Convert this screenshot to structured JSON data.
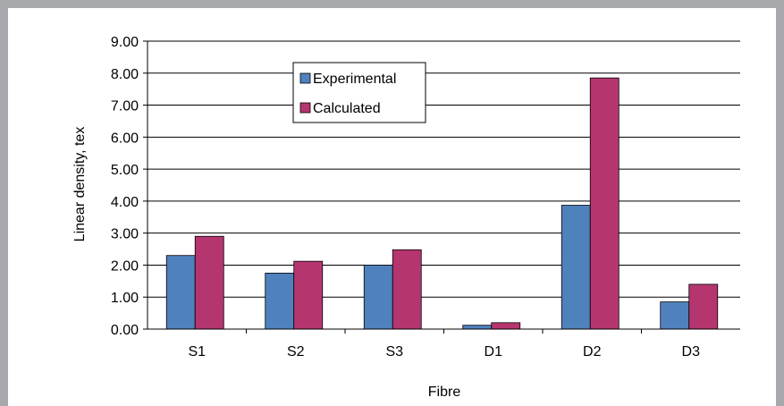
{
  "chart_data": {
    "type": "bar",
    "categories": [
      "S1",
      "S2",
      "S3",
      "D1",
      "D2",
      "D3"
    ],
    "series": [
      {
        "name": "Experimental",
        "color": "#4f81bd",
        "values": [
          2.3,
          1.75,
          2.0,
          0.12,
          3.87,
          0.85
        ]
      },
      {
        "name": "Calculated",
        "color": "#b5366f",
        "values": [
          2.9,
          2.12,
          2.48,
          0.2,
          7.85,
          1.4
        ]
      }
    ],
    "title": "",
    "xlabel": "Fibre",
    "ylabel": "Linear density, tex",
    "ylim": [
      0,
      9
    ],
    "yticks": [
      "0.00",
      "1.00",
      "2.00",
      "3.00",
      "4.00",
      "5.00",
      "6.00",
      "7.00",
      "8.00",
      "9.00"
    ],
    "grid": true,
    "legend_position": "top-left"
  }
}
